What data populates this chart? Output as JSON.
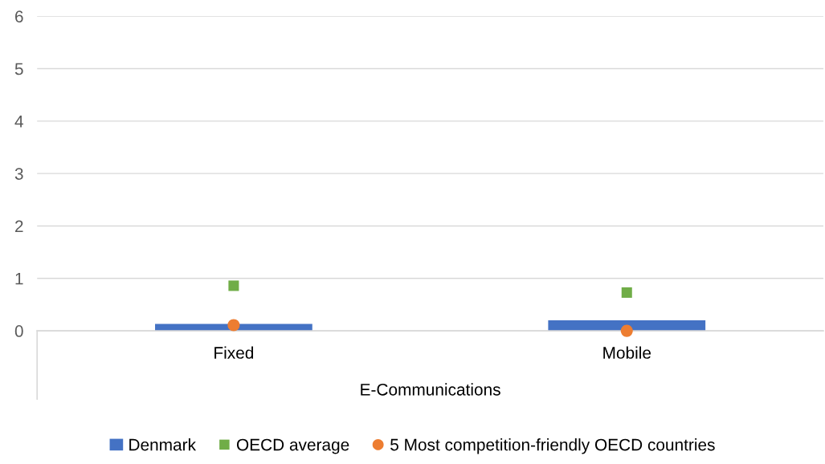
{
  "chart_data": {
    "type": "bar",
    "categories": [
      "Fixed",
      "Mobile"
    ],
    "xlabel": "E-Communications",
    "ylim": [
      0,
      6
    ],
    "yticks": [
      0,
      1,
      2,
      3,
      4,
      5,
      6
    ],
    "grid": "y",
    "legend": "bottom",
    "series": [
      {
        "name": "Denmark",
        "color": "#4472c4",
        "values": [
          0.13,
          0.2
        ]
      },
      {
        "name": "OECD average",
        "type": "scatter",
        "marker": "square",
        "color": "#70ad47",
        "values": [
          0.86,
          0.73
        ]
      },
      {
        "name": "5 Most competition-friendly OECD countries",
        "type": "scatter",
        "marker": "circle",
        "color": "#ed7d31",
        "values": [
          0.11,
          0.0
        ]
      }
    ]
  }
}
